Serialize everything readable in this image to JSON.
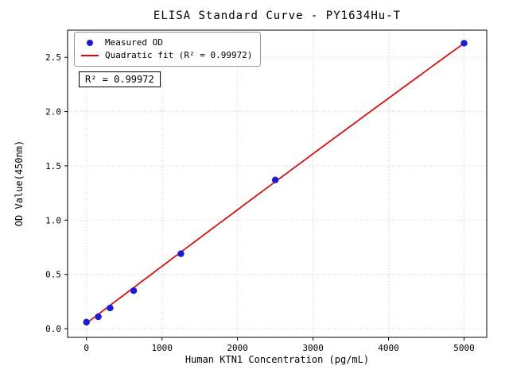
{
  "chart_data": {
    "type": "scatter",
    "title": "ELISA Standard Curve - PY1634Hu-T",
    "xlabel": "Human KTN1 Concentration (pg/mL)",
    "ylabel": "OD Value(450nm)",
    "xlim": [
      -250,
      5300
    ],
    "ylim": [
      -0.08,
      2.75
    ],
    "grid": true,
    "legend_position": "upper left",
    "x_ticks": {
      "values": [
        0,
        1000,
        2000,
        3000,
        4000,
        5000
      ],
      "labels": [
        "0",
        "1000",
        "2000",
        "3000",
        "4000",
        "5000"
      ]
    },
    "y_ticks": {
      "values": [
        0.0,
        0.5,
        1.0,
        1.5,
        2.0,
        2.5
      ],
      "labels": [
        "0.0",
        "0.5",
        "1.0",
        "1.5",
        "2.0",
        "2.5"
      ]
    },
    "points": {
      "x": [
        0,
        156.25,
        312.5,
        625,
        1250,
        2500,
        5000
      ],
      "y": [
        0.06,
        0.11,
        0.19,
        0.35,
        0.69,
        1.37,
        2.63
      ]
    },
    "fit": {
      "type": "quadratic",
      "a": 0.05,
      "b": 0.000527,
      "c": -2.2e-09,
      "x_start": 0,
      "x_end": 5000,
      "r_squared": 0.99972
    },
    "legend": {
      "measured": "Measured OD",
      "fit": "Quadratic fit (R² = 0.99972)"
    },
    "annotation": "R² = 0.99972",
    "colors": {
      "points": "#1a1ade",
      "fit_line": "#e80000",
      "grid": "#c9c9c9",
      "axis": "#000000"
    }
  }
}
